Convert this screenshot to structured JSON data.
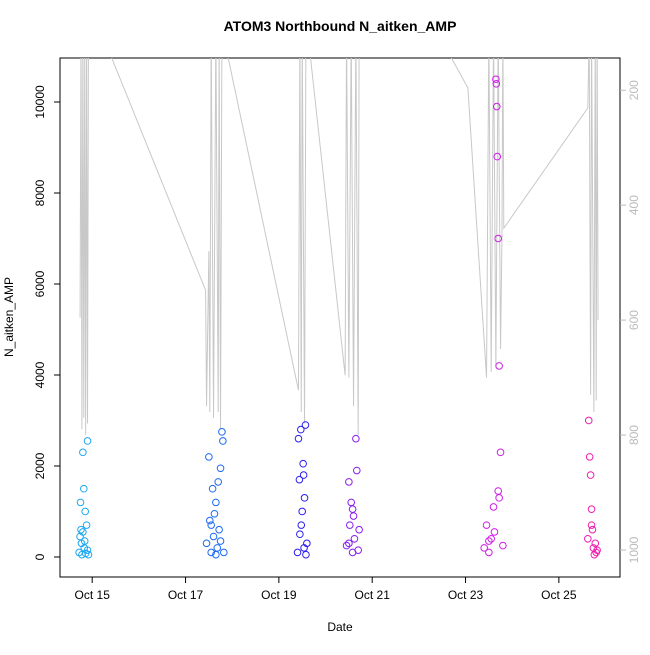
{
  "chart_data": {
    "type": "scatter",
    "title": "ATOM3 Northbound N_aitken_AMP",
    "x_label": "Date",
    "y_label": "N_aitken_AMP",
    "xlim": [
      14.31,
      26.31
    ],
    "ylim": [
      -440,
      10967
    ],
    "y2lim": [
      1047,
      144
    ],
    "xticks": [
      {
        "value": 15,
        "label": "Oct 15"
      },
      {
        "value": 17,
        "label": "Oct 17"
      },
      {
        "value": 19,
        "label": "Oct 19"
      },
      {
        "value": 21,
        "label": "Oct 21"
      },
      {
        "value": 23,
        "label": "Oct 23"
      },
      {
        "value": 25,
        "label": "Oct 25"
      }
    ],
    "yticks": [
      0,
      2000,
      4000,
      6000,
      8000,
      10000
    ],
    "y2ticks": [
      200,
      400,
      600,
      800,
      1000
    ],
    "y2color": "#bbbbbb",
    "series": [
      {
        "color": "#1ea8f0",
        "x": [
          14.72,
          14.74,
          14.75,
          14.77,
          14.78,
          14.8,
          14.8,
          14.82,
          14.83,
          14.85,
          14.86,
          14.88,
          14.9,
          14.9,
          14.92,
          14.76,
          14.84
        ],
        "values": [
          100,
          450,
          1200,
          300,
          50,
          2300,
          550,
          1500,
          200,
          1000,
          80,
          700,
          2550,
          150,
          50,
          600,
          350
        ]
      },
      {
        "color": "#1e6af0",
        "x": [
          17.45,
          17.5,
          17.52,
          17.55,
          17.58,
          17.6,
          17.62,
          17.65,
          17.68,
          17.7,
          17.72,
          17.75,
          17.78,
          17.8,
          17.82,
          17.55,
          17.65,
          17.75
        ],
        "values": [
          300,
          2200,
          800,
          100,
          1500,
          450,
          950,
          1200,
          200,
          1650,
          600,
          1950,
          2750,
          2550,
          100,
          700,
          50,
          350
        ]
      },
      {
        "color": "#2a1ef0",
        "x": [
          19.4,
          19.42,
          19.44,
          19.45,
          19.47,
          19.5,
          19.52,
          19.54,
          19.55,
          19.57,
          19.58,
          19.48,
          19.53,
          19.6
        ],
        "values": [
          100,
          2600,
          1700,
          500,
          2800,
          1000,
          2050,
          200,
          1300,
          2900,
          50,
          700,
          1800,
          300
        ]
      },
      {
        "color": "#8a1ef0",
        "x": [
          20.45,
          20.5,
          20.52,
          20.55,
          20.58,
          20.6,
          20.62,
          20.65,
          20.67,
          20.7,
          20.72,
          20.5,
          20.58
        ],
        "values": [
          250,
          1650,
          700,
          1200,
          100,
          900,
          400,
          2600,
          1900,
          150,
          600,
          300,
          1050
        ]
      },
      {
        "color": "#d01ee8",
        "x": [
          23.4,
          23.45,
          23.5,
          23.55,
          23.6,
          23.65,
          23.67,
          23.68,
          23.7,
          23.72,
          23.75,
          23.7,
          23.72,
          23.62,
          23.8,
          23.5,
          23.66
        ],
        "values": [
          200,
          700,
          100,
          400,
          1100,
          10500,
          9900,
          8800,
          7000,
          4200,
          2300,
          1450,
          1300,
          550,
          250,
          350,
          10400
        ]
      },
      {
        "color": "#f01eb0",
        "x": [
          25.62,
          25.64,
          25.66,
          25.68,
          25.7,
          25.72,
          25.74,
          25.76,
          25.78,
          25.8,
          25.82,
          25.7
        ],
        "values": [
          400,
          3000,
          2200,
          1800,
          1050,
          600,
          200,
          50,
          300,
          100,
          150,
          700
        ]
      },
      {
        "type": "line",
        "axis": "y2",
        "color": "#c8c8c8",
        "x": [
          14.74,
          14.76,
          14.78,
          14.8,
          14.82,
          14.84,
          14.86,
          14.88,
          14.9,
          14.92,
          15.2,
          17.43,
          17.45,
          17.5,
          17.52,
          17.55,
          17.6,
          17.65,
          17.7,
          17.72,
          17.75,
          17.78,
          17.8,
          19.42,
          19.45,
          19.48,
          19.5,
          19.55,
          19.58,
          19.62,
          20.42,
          20.45,
          20.5,
          20.55,
          20.6,
          20.65,
          20.7,
          20.72,
          20.75,
          22.4,
          23.05,
          23.45,
          23.5,
          23.55,
          23.6,
          23.65,
          23.7,
          23.75,
          23.78,
          23.8,
          23.82,
          25.62,
          25.65,
          25.68,
          25.7,
          25.75,
          25.78,
          25.8,
          25.82,
          25.84
        ],
        "values": [
          596,
          100,
          790,
          100,
          770,
          100,
          800,
          100,
          780,
          100,
          100,
          548,
          750,
          480,
          760,
          100,
          770,
          100,
          760,
          100,
          790,
          100,
          100,
          722,
          100,
          760,
          100,
          780,
          100,
          100,
          696,
          100,
          700,
          100,
          750,
          100,
          800,
          100,
          100,
          100,
          196,
          700,
          100,
          690,
          100,
          680,
          100,
          650,
          460,
          100,
          440,
          231,
          100,
          730,
          100,
          760,
          100,
          740,
          100,
          600
        ]
      }
    ]
  }
}
